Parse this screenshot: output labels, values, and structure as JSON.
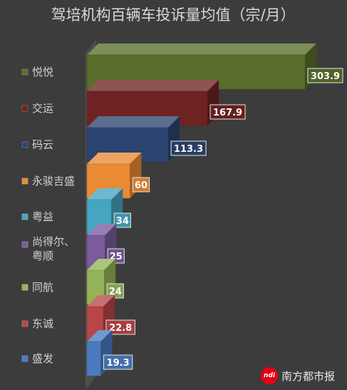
{
  "chart_data": {
    "type": "bar",
    "orientation": "horizontal",
    "title": "驾培机构百辆车投诉量均值（宗/月）",
    "categories": [
      "悦悦",
      "交运",
      "码云",
      "永骏吉盛",
      "粤益",
      "尚得尔、粤顺",
      "同航",
      "东诚",
      "盛发"
    ],
    "label_lines": [
      [
        "悦悦"
      ],
      [
        "交运"
      ],
      [
        "码云"
      ],
      [
        "永骏吉盛"
      ],
      [
        "粤益"
      ],
      [
        "尚得尔、",
        "粤顺"
      ],
      [
        "同航"
      ],
      [
        "东诚"
      ],
      [
        "盛发"
      ]
    ],
    "values": [
      303.9,
      167.9,
      113.3,
      60,
      34,
      25,
      24,
      22.8,
      19.3
    ],
    "value_labels": [
      "303.9",
      "167.9",
      "113.3",
      "60",
      "34",
      "25",
      "24",
      "22.8",
      "19.3"
    ],
    "colors": [
      "#586e2a",
      "#6e2222",
      "#2b4470",
      "#e98a35",
      "#46a5c0",
      "#7a5b9c",
      "#93b456",
      "#b84646",
      "#4a7bbf"
    ],
    "xlim": [
      0,
      303.9
    ],
    "grid": false,
    "legend": "none",
    "style": "3d"
  },
  "watermark": {
    "logo": "ndi",
    "text": "南方都市报"
  }
}
